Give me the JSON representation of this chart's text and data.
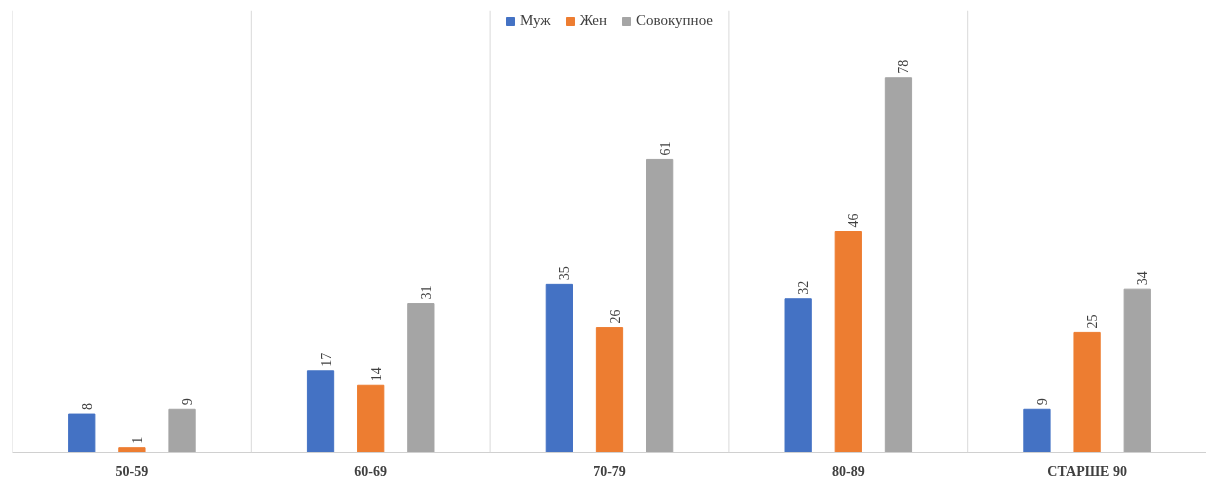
{
  "chart_data": {
    "type": "bar",
    "categories": [
      "50-59",
      "60-69",
      "70-79",
      "80-89",
      "СТАРШЕ 90"
    ],
    "series": [
      {
        "name": "Муж",
        "color": "#4472c4",
        "values": [
          8,
          17,
          35,
          32,
          9
        ]
      },
      {
        "name": "Жен",
        "color": "#ed7d31",
        "values": [
          1,
          14,
          26,
          46,
          25
        ]
      },
      {
        "name": "Совокупное",
        "color": "#a5a5a5",
        "values": [
          9,
          31,
          61,
          78,
          34
        ]
      }
    ],
    "ylim": [
      0,
      92
    ],
    "data_labels": true,
    "grid": "x",
    "legend": "top",
    "tick_labels": "x"
  }
}
